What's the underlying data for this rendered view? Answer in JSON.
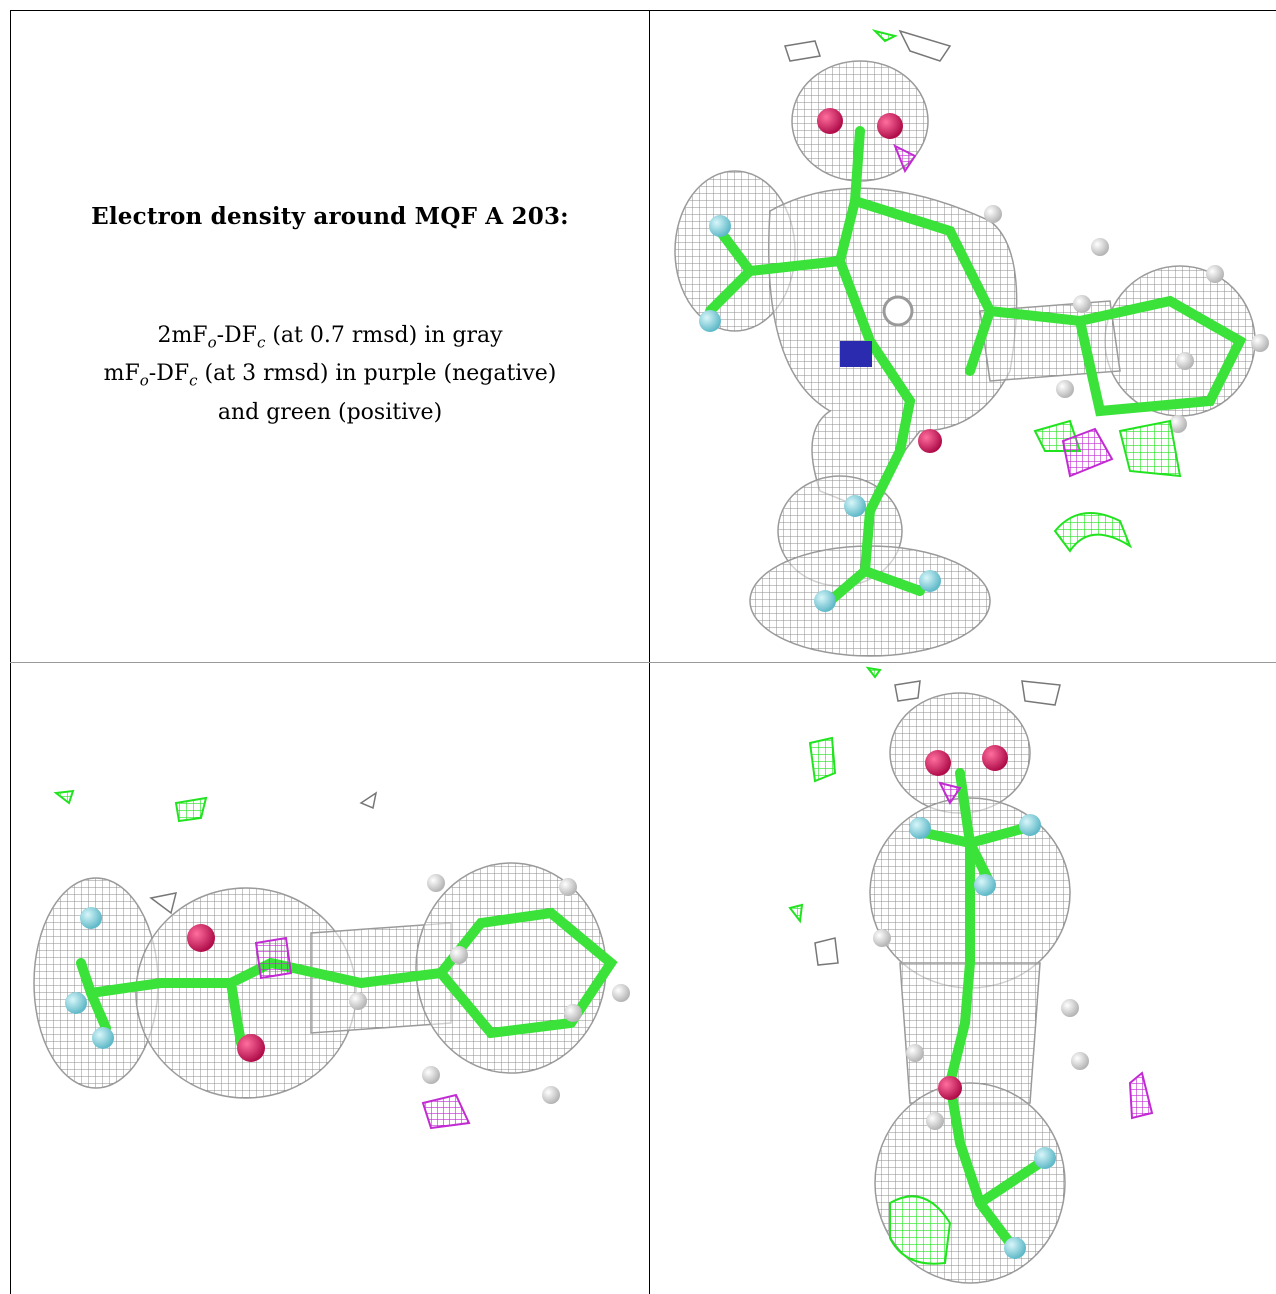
{
  "caption": {
    "title": "Electron density around MQF A 203:",
    "line1_prefix": "2mF",
    "line1_sub": "o",
    "line1_mid": "-DF",
    "line1_sub2": "c",
    "line1_suffix": " (at 0.7 rmsd) in gray",
    "line2_prefix": "mF",
    "line2_sub": "o",
    "line2_mid": "-DF",
    "line2_sub2": "c",
    "line2_suffix": " (at 3 rmsd) in purple (negative)",
    "line3": "and green (positive)"
  },
  "colors": {
    "mesh_gray": "#9a9a9a",
    "mesh_purple": "#c22bd3",
    "mesh_green": "#22e31f",
    "carbon": "#3be23a",
    "oxygen": "#d8135a",
    "nitrogen": "#2b2bb0",
    "fluorine": "#8ad8e4",
    "hydrogen": "#e6e6e6"
  },
  "panels": [
    {
      "view": "top-view-density"
    },
    {
      "view": "side-view-density"
    },
    {
      "view": "front-view-density"
    }
  ]
}
